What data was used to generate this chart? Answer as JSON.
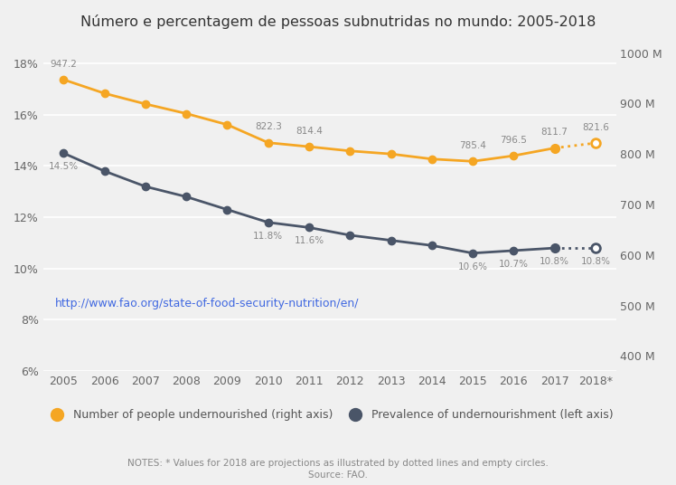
{
  "title": "Número e percentagem de pessoas subnutridas no mundo: 2005-2018",
  "years": [
    2005,
    2006,
    2007,
    2008,
    2009,
    2010,
    2011,
    2012,
    2013,
    2014,
    2015,
    2016,
    2017,
    "2018*"
  ],
  "years_numeric": [
    2005,
    2006,
    2007,
    2008,
    2009,
    2010,
    2011,
    2012,
    2013,
    2014,
    2015,
    2016,
    2017,
    2018
  ],
  "number_millions": [
    947.2,
    920.0,
    899.0,
    880.0,
    858.0,
    822.3,
    814.4,
    806.0,
    800.0,
    790.0,
    785.4,
    796.5,
    811.7,
    821.6
  ],
  "prevalence_pct": [
    14.5,
    13.8,
    13.2,
    12.8,
    12.3,
    11.8,
    11.6,
    11.3,
    11.1,
    10.9,
    10.6,
    10.7,
    10.8,
    10.8
  ],
  "number_labels": {
    "2005": "947.2",
    "2010": "822.3",
    "2011": "814.4",
    "2015": "785.4",
    "2016": "796.5",
    "2017": "811.7",
    "2018": "821.6"
  },
  "prevalence_labels": {
    "2005": "14.5%",
    "2010": "11.8%",
    "2011": "11.6%",
    "2015": "10.6%",
    "2016": "10.7%",
    "2017": "10.8%",
    "2018": "10.8%"
  },
  "orange_color": "#F5A623",
  "dark_color": "#4A5568",
  "bg_color": "#F0F0F0",
  "url": "http://www.fao.org/state-of-food-security-nutrition/en/",
  "note": "NOTES: * Values for 2018 are projections as illustrated by dotted lines and empty circles.",
  "source": "Source: FAO.",
  "left_ylim": [
    6,
    19
  ],
  "right_ylim": [
    370,
    1030
  ],
  "left_yticks": [
    6,
    8,
    10,
    12,
    14,
    16,
    18
  ],
  "right_yticks": [
    400,
    500,
    600,
    700,
    800,
    900,
    1000
  ]
}
